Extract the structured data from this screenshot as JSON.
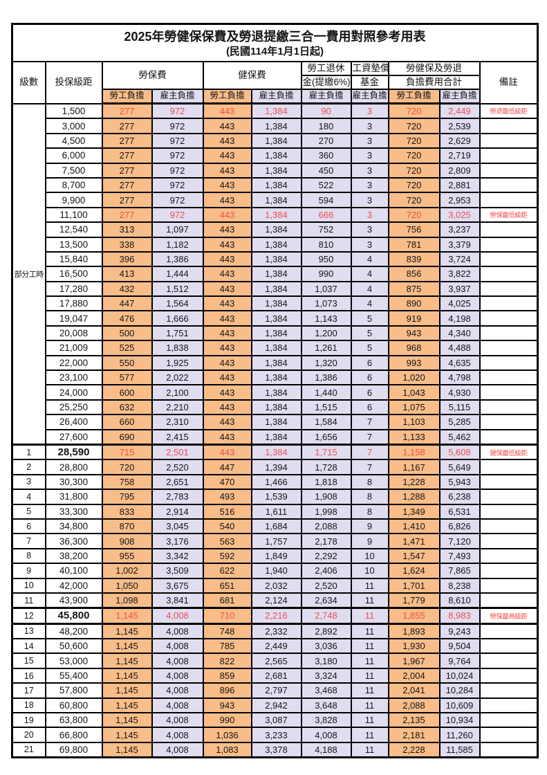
{
  "title": "2025年勞健保保費及勞退提繳三合一費用對照參考用表",
  "subtitle": "(民國114年1月1日起)",
  "header": {
    "level": "級數",
    "bracket": "投保級距",
    "labor_ins": "勞保費",
    "health_ins": "健保費",
    "pension_line1": "勞工退休",
    "pension_line2": "金(提繳6%)",
    "fund_line1": "工資墊償",
    "fund_line2": "基金",
    "total_line1": "勞健保及勞退",
    "total_line2": "負擔費用合計",
    "employee_share": "勞工負擔",
    "employer_share": "雇主負擔",
    "note": "備註"
  },
  "part_time_label": "部分工時",
  "colors": {
    "employee_bg": "#f8bd89",
    "employer_bg": "#e0ddf1",
    "highlight_red": "#f04e4b",
    "border": "#000000",
    "background": "#ffffff"
  },
  "columns_order": [
    "labor_employee",
    "labor_employer",
    "health_employee",
    "health_employer",
    "pension_employer",
    "fund_employer",
    "total_employee",
    "total_employer"
  ],
  "rows": [
    {
      "group": "part",
      "bracket": "1,500",
      "values": [
        "277",
        "972",
        "443",
        "1,384",
        "90",
        "3",
        "720",
        "2,449"
      ],
      "note": "勞退最低級距",
      "red": true
    },
    {
      "group": "part",
      "bracket": "3,000",
      "values": [
        "277",
        "972",
        "443",
        "1,384",
        "180",
        "3",
        "720",
        "2,539"
      ],
      "note": ""
    },
    {
      "group": "part",
      "bracket": "4,500",
      "values": [
        "277",
        "972",
        "443",
        "1,384",
        "270",
        "3",
        "720",
        "2,629"
      ],
      "note": ""
    },
    {
      "group": "part",
      "bracket": "6,000",
      "values": [
        "277",
        "972",
        "443",
        "1,384",
        "360",
        "3",
        "720",
        "2,719"
      ],
      "note": ""
    },
    {
      "group": "part",
      "bracket": "7,500",
      "values": [
        "277",
        "972",
        "443",
        "1,384",
        "450",
        "3",
        "720",
        "2,809"
      ],
      "note": ""
    },
    {
      "group": "part",
      "bracket": "8,700",
      "values": [
        "277",
        "972",
        "443",
        "1,384",
        "522",
        "3",
        "720",
        "2,881"
      ],
      "note": ""
    },
    {
      "group": "part",
      "bracket": "9,900",
      "values": [
        "277",
        "972",
        "443",
        "1,384",
        "594",
        "3",
        "720",
        "2,953"
      ],
      "note": ""
    },
    {
      "group": "part",
      "bracket": "11,100",
      "values": [
        "277",
        "972",
        "443",
        "1,384",
        "666",
        "3",
        "720",
        "3,025"
      ],
      "note": "勞保最低級距",
      "red": true
    },
    {
      "group": "part",
      "bracket": "12,540",
      "values": [
        "313",
        "1,097",
        "443",
        "1,384",
        "752",
        "3",
        "756",
        "3,237"
      ],
      "note": ""
    },
    {
      "group": "part",
      "bracket": "13,500",
      "values": [
        "338",
        "1,182",
        "443",
        "1,384",
        "810",
        "3",
        "781",
        "3,379"
      ],
      "note": ""
    },
    {
      "group": "part",
      "bracket": "15,840",
      "values": [
        "396",
        "1,386",
        "443",
        "1,384",
        "950",
        "4",
        "839",
        "3,724"
      ],
      "note": ""
    },
    {
      "group": "part",
      "bracket": "16,500",
      "values": [
        "413",
        "1,444",
        "443",
        "1,384",
        "990",
        "4",
        "856",
        "3,822"
      ],
      "note": ""
    },
    {
      "group": "part",
      "bracket": "17,280",
      "values": [
        "432",
        "1,512",
        "443",
        "1,384",
        "1,037",
        "4",
        "875",
        "3,937"
      ],
      "note": ""
    },
    {
      "group": "part",
      "bracket": "17,880",
      "values": [
        "447",
        "1,564",
        "443",
        "1,384",
        "1,073",
        "4",
        "890",
        "4,025"
      ],
      "note": ""
    },
    {
      "group": "part",
      "bracket": "19,047",
      "values": [
        "476",
        "1,666",
        "443",
        "1,384",
        "1,143",
        "5",
        "919",
        "4,198"
      ],
      "note": ""
    },
    {
      "group": "part",
      "bracket": "20,008",
      "values": [
        "500",
        "1,751",
        "443",
        "1,384",
        "1,200",
        "5",
        "943",
        "4,340"
      ],
      "note": ""
    },
    {
      "group": "part",
      "bracket": "21,009",
      "values": [
        "525",
        "1,838",
        "443",
        "1,384",
        "1,261",
        "5",
        "968",
        "4,488"
      ],
      "note": ""
    },
    {
      "group": "part",
      "bracket": "22,000",
      "values": [
        "550",
        "1,925",
        "443",
        "1,384",
        "1,320",
        "6",
        "993",
        "4,635"
      ],
      "note": ""
    },
    {
      "group": "part",
      "bracket": "23,100",
      "values": [
        "577",
        "2,022",
        "443",
        "1,384",
        "1,386",
        "6",
        "1,020",
        "4,798"
      ],
      "note": ""
    },
    {
      "group": "part",
      "bracket": "24,000",
      "values": [
        "600",
        "2,100",
        "443",
        "1,384",
        "1,440",
        "6",
        "1,043",
        "4,930"
      ],
      "note": ""
    },
    {
      "group": "part",
      "bracket": "25,250",
      "values": [
        "632",
        "2,210",
        "443",
        "1,384",
        "1,515",
        "6",
        "1,075",
        "5,115"
      ],
      "note": ""
    },
    {
      "group": "part",
      "bracket": "26,400",
      "values": [
        "660",
        "2,310",
        "443",
        "1,384",
        "1,584",
        "7",
        "1,103",
        "5,285"
      ],
      "note": ""
    },
    {
      "group": "part",
      "bracket": "27,600",
      "values": [
        "690",
        "2,415",
        "443",
        "1,384",
        "1,656",
        "7",
        "1,133",
        "5,462"
      ],
      "note": ""
    },
    {
      "level": "1",
      "bracket": "28,590",
      "values": [
        "715",
        "2,501",
        "443",
        "1,384",
        "1,715",
        "7",
        "1,158",
        "5,608"
      ],
      "note": "健保最低級距",
      "red": true,
      "bold": true,
      "thick_top": true
    },
    {
      "level": "2",
      "bracket": "28,800",
      "values": [
        "720",
        "2,520",
        "447",
        "1,394",
        "1,728",
        "7",
        "1,167",
        "5,649"
      ],
      "note": ""
    },
    {
      "level": "3",
      "bracket": "30,300",
      "values": [
        "758",
        "2,651",
        "470",
        "1,466",
        "1,818",
        "8",
        "1,228",
        "5,943"
      ],
      "note": ""
    },
    {
      "level": "4",
      "bracket": "31,800",
      "values": [
        "795",
        "2,783",
        "493",
        "1,539",
        "1,908",
        "8",
        "1,288",
        "6,238"
      ],
      "note": ""
    },
    {
      "level": "5",
      "bracket": "33,300",
      "values": [
        "833",
        "2,914",
        "516",
        "1,611",
        "1,998",
        "8",
        "1,349",
        "6,531"
      ],
      "note": ""
    },
    {
      "level": "6",
      "bracket": "34,800",
      "values": [
        "870",
        "3,045",
        "540",
        "1,684",
        "2,088",
        "9",
        "1,410",
        "6,826"
      ],
      "note": ""
    },
    {
      "level": "7",
      "bracket": "36,300",
      "values": [
        "908",
        "3,176",
        "563",
        "1,757",
        "2,178",
        "9",
        "1,471",
        "7,120"
      ],
      "note": ""
    },
    {
      "level": "8",
      "bracket": "38,200",
      "values": [
        "955",
        "3,342",
        "592",
        "1,849",
        "2,292",
        "10",
        "1,547",
        "7,493"
      ],
      "note": ""
    },
    {
      "level": "9",
      "bracket": "40,100",
      "values": [
        "1,002",
        "3,509",
        "622",
        "1,940",
        "2,406",
        "10",
        "1,624",
        "7,865"
      ],
      "note": ""
    },
    {
      "level": "10",
      "bracket": "42,000",
      "values": [
        "1,050",
        "3,675",
        "651",
        "2,032",
        "2,520",
        "11",
        "1,701",
        "8,238"
      ],
      "note": ""
    },
    {
      "level": "11",
      "bracket": "43,900",
      "values": [
        "1,098",
        "3,841",
        "681",
        "2,124",
        "2,634",
        "11",
        "1,779",
        "8,610"
      ],
      "note": ""
    },
    {
      "level": "12",
      "bracket": "45,800",
      "values": [
        "1,145",
        "4,008",
        "710",
        "2,216",
        "2,748",
        "11",
        "1,855",
        "8,983"
      ],
      "note": "勞保最高級距",
      "red": true,
      "bold": true,
      "thick_top": true,
      "thick_bottom": true
    },
    {
      "level": "13",
      "bracket": "48,200",
      "values": [
        "1,145",
        "4,008",
        "748",
        "2,332",
        "2,892",
        "11",
        "1,893",
        "9,243"
      ],
      "note": ""
    },
    {
      "level": "14",
      "bracket": "50,600",
      "values": [
        "1,145",
        "4,008",
        "785",
        "2,449",
        "3,036",
        "11",
        "1,930",
        "9,504"
      ],
      "note": ""
    },
    {
      "level": "15",
      "bracket": "53,000",
      "values": [
        "1,145",
        "4,008",
        "822",
        "2,565",
        "3,180",
        "11",
        "1,967",
        "9,764"
      ],
      "note": ""
    },
    {
      "level": "16",
      "bracket": "55,400",
      "values": [
        "1,145",
        "4,008",
        "859",
        "2,681",
        "3,324",
        "11",
        "2,004",
        "10,024"
      ],
      "note": ""
    },
    {
      "level": "17",
      "bracket": "57,800",
      "values": [
        "1,145",
        "4,008",
        "896",
        "2,797",
        "3,468",
        "11",
        "2,041",
        "10,284"
      ],
      "note": ""
    },
    {
      "level": "18",
      "bracket": "60,800",
      "values": [
        "1,145",
        "4,008",
        "943",
        "2,942",
        "3,648",
        "11",
        "2,088",
        "10,609"
      ],
      "note": ""
    },
    {
      "level": "19",
      "bracket": "63,800",
      "values": [
        "1,145",
        "4,008",
        "990",
        "3,087",
        "3,828",
        "11",
        "2,135",
        "10,934"
      ],
      "note": ""
    },
    {
      "level": "20",
      "bracket": "66,800",
      "values": [
        "1,145",
        "4,008",
        "1,036",
        "3,233",
        "4,008",
        "11",
        "2,181",
        "11,260"
      ],
      "note": ""
    },
    {
      "level": "21",
      "bracket": "69,800",
      "values": [
        "1,145",
        "4,008",
        "1,083",
        "3,378",
        "4,188",
        "11",
        "2,228",
        "11,585"
      ],
      "note": ""
    }
  ]
}
